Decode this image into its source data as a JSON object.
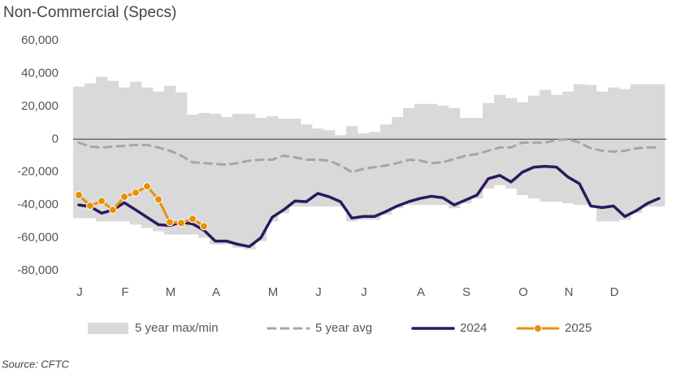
{
  "chart_data": {
    "type": "line",
    "title": "Non-Commercial (Specs)",
    "source": "Source: CFTC",
    "categories": [
      "J",
      null,
      null,
      null,
      "F",
      null,
      null,
      null,
      "M",
      null,
      null,
      null,
      "A",
      null,
      null,
      null,
      null,
      "M",
      null,
      null,
      null,
      "J",
      null,
      null,
      null,
      "J",
      null,
      null,
      null,
      null,
      "A",
      null,
      null,
      null,
      "S",
      null,
      null,
      null,
      null,
      "O",
      null,
      null,
      null,
      "N",
      null,
      null,
      null,
      "D",
      null,
      null,
      null,
      null
    ],
    "ylim": [
      -80000,
      60000
    ],
    "yticks": [
      {
        "value": 60000,
        "label": "60,000"
      },
      {
        "value": 40000,
        "label": "40,000"
      },
      {
        "value": 20000,
        "label": "20,000"
      },
      0,
      {
        "value": -20000,
        "label": "-20,000"
      },
      {
        "value": -40000,
        "label": "-40,000"
      },
      {
        "value": -60000,
        "label": "-60,000"
      },
      {
        "value": -80000,
        "label": "-80,000"
      }
    ],
    "series": [
      {
        "name": "5 year max/min",
        "kind": "range",
        "color": "#d9d9d9",
        "values": [
          32000,
          34000,
          38000,
          35500,
          31500,
          35000,
          31500,
          29000,
          32500,
          28500,
          15000,
          16000,
          15500,
          13500,
          15500,
          15500,
          13000,
          14000,
          12500,
          12500,
          9000,
          6500,
          5500,
          2500,
          8000,
          3500,
          4500,
          9000,
          13500,
          19000,
          21500,
          21500,
          20500,
          19000,
          13000,
          13000,
          22000,
          27000,
          25000,
          22500,
          26500,
          30000,
          27000,
          29000,
          33500,
          33000,
          29000,
          31500,
          30500,
          33500,
          33500,
          33500
        ],
        "min": [
          -48000,
          -48000,
          -50000,
          -50000,
          -50000,
          -52000,
          -54000,
          -56000,
          -58000,
          -58000,
          -58000,
          -60000,
          -64000,
          -64000,
          -66000,
          -67000,
          -62000,
          -50000,
          -45000,
          -41000,
          -41000,
          -41000,
          -41000,
          -41000,
          -50000,
          -49000,
          -49000,
          -46000,
          -42000,
          -40000,
          -40000,
          -40000,
          -40000,
          -42000,
          -39000,
          -36000,
          -30000,
          -28000,
          -30000,
          -34000,
          -36000,
          -38000,
          -38000,
          -39000,
          -40000,
          -40000,
          -50000,
          -50000,
          -49000,
          -45000,
          -41000,
          -41000
        ]
      },
      {
        "name": "5 year avg",
        "kind": "dashed",
        "color": "#a6a6a6",
        "values": [
          -2000,
          -4500,
          -5000,
          -4500,
          -4000,
          -3500,
          -3500,
          -5000,
          -7000,
          -10000,
          -14000,
          -14500,
          -15000,
          -15500,
          -14500,
          -13000,
          -12500,
          -12500,
          -10000,
          -11000,
          -12500,
          -12500,
          -13000,
          -16000,
          -20000,
          -18000,
          -17000,
          -16000,
          -14500,
          -12500,
          -13000,
          -14500,
          -14000,
          -12000,
          -10000,
          -9000,
          -7000,
          -5000,
          -5000,
          -2000,
          -2000,
          -2000,
          -500,
          0,
          -2000,
          -5500,
          -7000,
          -7500,
          -7000,
          -5500,
          -5000,
          -5000
        ]
      },
      {
        "name": "2024",
        "kind": "line",
        "color": "#2e1760",
        "values": [
          -40000,
          -41000,
          -45000,
          -43000,
          -38600,
          -43000,
          -47500,
          -52000,
          -52500,
          -50500,
          -51500,
          -55400,
          -62000,
          -62000,
          -64000,
          -65300,
          -60000,
          -47500,
          -43000,
          -37600,
          -38000,
          -33000,
          -35000,
          -38000,
          -48000,
          -47000,
          -47000,
          -44000,
          -40600,
          -38000,
          -36000,
          -34700,
          -35600,
          -40000,
          -37000,
          -34000,
          -24000,
          -22000,
          -26000,
          -20000,
          -17000,
          -16500,
          -17000,
          -23000,
          -27000,
          -40600,
          -41600,
          -40600,
          -47000,
          -43500,
          -39000,
          -36000
        ]
      },
      {
        "name": "2025",
        "kind": "markers",
        "color": "#e8900a",
        "values": [
          -34000,
          -40500,
          -37600,
          -43000,
          -35000,
          -32500,
          -28700,
          -36600,
          -50500,
          -51000,
          -48500,
          -53000,
          null,
          null,
          null,
          null,
          null,
          null,
          null,
          null,
          null,
          null,
          null,
          null,
          null,
          null,
          null,
          null,
          null,
          null,
          null,
          null,
          null,
          null,
          null,
          null,
          null,
          null,
          null,
          null,
          null,
          null,
          null,
          null,
          null,
          null,
          null,
          null,
          null,
          null,
          null,
          null
        ]
      }
    ]
  }
}
